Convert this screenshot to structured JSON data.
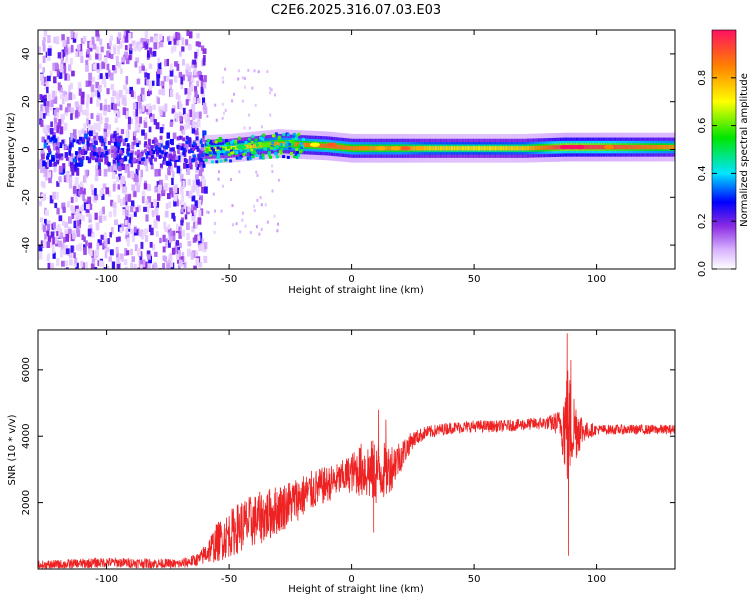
{
  "title": "C2E6.2025.316.07.03.E03",
  "chart_data": [
    {
      "type": "heatmap",
      "xlabel": "Height of straight line (km)",
      "ylabel": "Frequency (Hz)",
      "xlim": [
        -128,
        132
      ],
      "ylim": [
        -50,
        50
      ],
      "xticks": [
        -100,
        -50,
        0,
        50,
        100
      ],
      "yticks": [
        -40,
        -20,
        0,
        20,
        40
      ],
      "colorbar": {
        "label": "Normalized spectral amplitude",
        "range": [
          0,
          1
        ],
        "ticks": [
          "0.0",
          "0.2",
          "0.4",
          "0.6",
          "0.8"
        ],
        "tick_values": [
          0,
          0.2,
          0.4,
          0.6,
          0.8
        ]
      },
      "noise_region": {
        "x_range": [
          -128,
          -60
        ],
        "freq_range": [
          -50,
          50
        ]
      },
      "ridge": {
        "x": [
          -60,
          -50,
          -40,
          -30,
          -20,
          -10,
          0,
          10,
          20,
          30,
          50,
          70,
          87,
          100,
          132
        ],
        "center_hz": [
          0,
          0.5,
          1.5,
          2.5,
          2,
          1.5,
          0.5,
          0.5,
          0.5,
          0.5,
          0.5,
          0.5,
          1,
          1,
          1
        ],
        "amplitude": [
          0.45,
          0.5,
          0.6,
          0.7,
          0.75,
          0.8,
          0.75,
          0.7,
          0.72,
          0.6,
          0.55,
          0.6,
          0.95,
          0.9,
          0.7
        ]
      }
    },
    {
      "type": "line",
      "xlabel": "Height of straight line (km)",
      "ylabel": "SNR (10 * v/v)",
      "xlim": [
        -128,
        132
      ],
      "ylim": [
        0,
        7200
      ],
      "xticks": [
        -100,
        -50,
        0,
        50,
        100
      ],
      "yticks": [
        2000,
        4000,
        6000
      ],
      "color": "#ee2222",
      "envelope": {
        "x": [
          -128,
          -100,
          -70,
          -62,
          -55,
          -45,
          -35,
          -25,
          -15,
          -5,
          0,
          5,
          10,
          15,
          20,
          25,
          30,
          40,
          50,
          60,
          70,
          80,
          85,
          88,
          90,
          95,
          100,
          110,
          120,
          132
        ],
        "mean": [
          100,
          200,
          150,
          300,
          800,
          1300,
          1600,
          2000,
          2400,
          2700,
          2900,
          3000,
          2900,
          3000,
          3400,
          3900,
          4100,
          4250,
          4300,
          4300,
          4350,
          4400,
          4400,
          4300,
          4300,
          4150,
          4200,
          4200,
          4200,
          4200
        ],
        "spread": [
          150,
          150,
          150,
          200,
          600,
          800,
          800,
          700,
          600,
          500,
          600,
          900,
          1000,
          800,
          500,
          250,
          200,
          180,
          180,
          180,
          180,
          200,
          400,
          2000,
          1300,
          300,
          150,
          150,
          150,
          150
        ]
      },
      "spikes": [
        {
          "x": 88,
          "y": 7100
        },
        {
          "x": 88.5,
          "y": 400
        },
        {
          "x": 89.5,
          "y": 6300
        },
        {
          "x": 11,
          "y": 4800
        },
        {
          "x": 9,
          "y": 1100
        },
        {
          "x": 14,
          "y": 4500
        }
      ]
    }
  ]
}
